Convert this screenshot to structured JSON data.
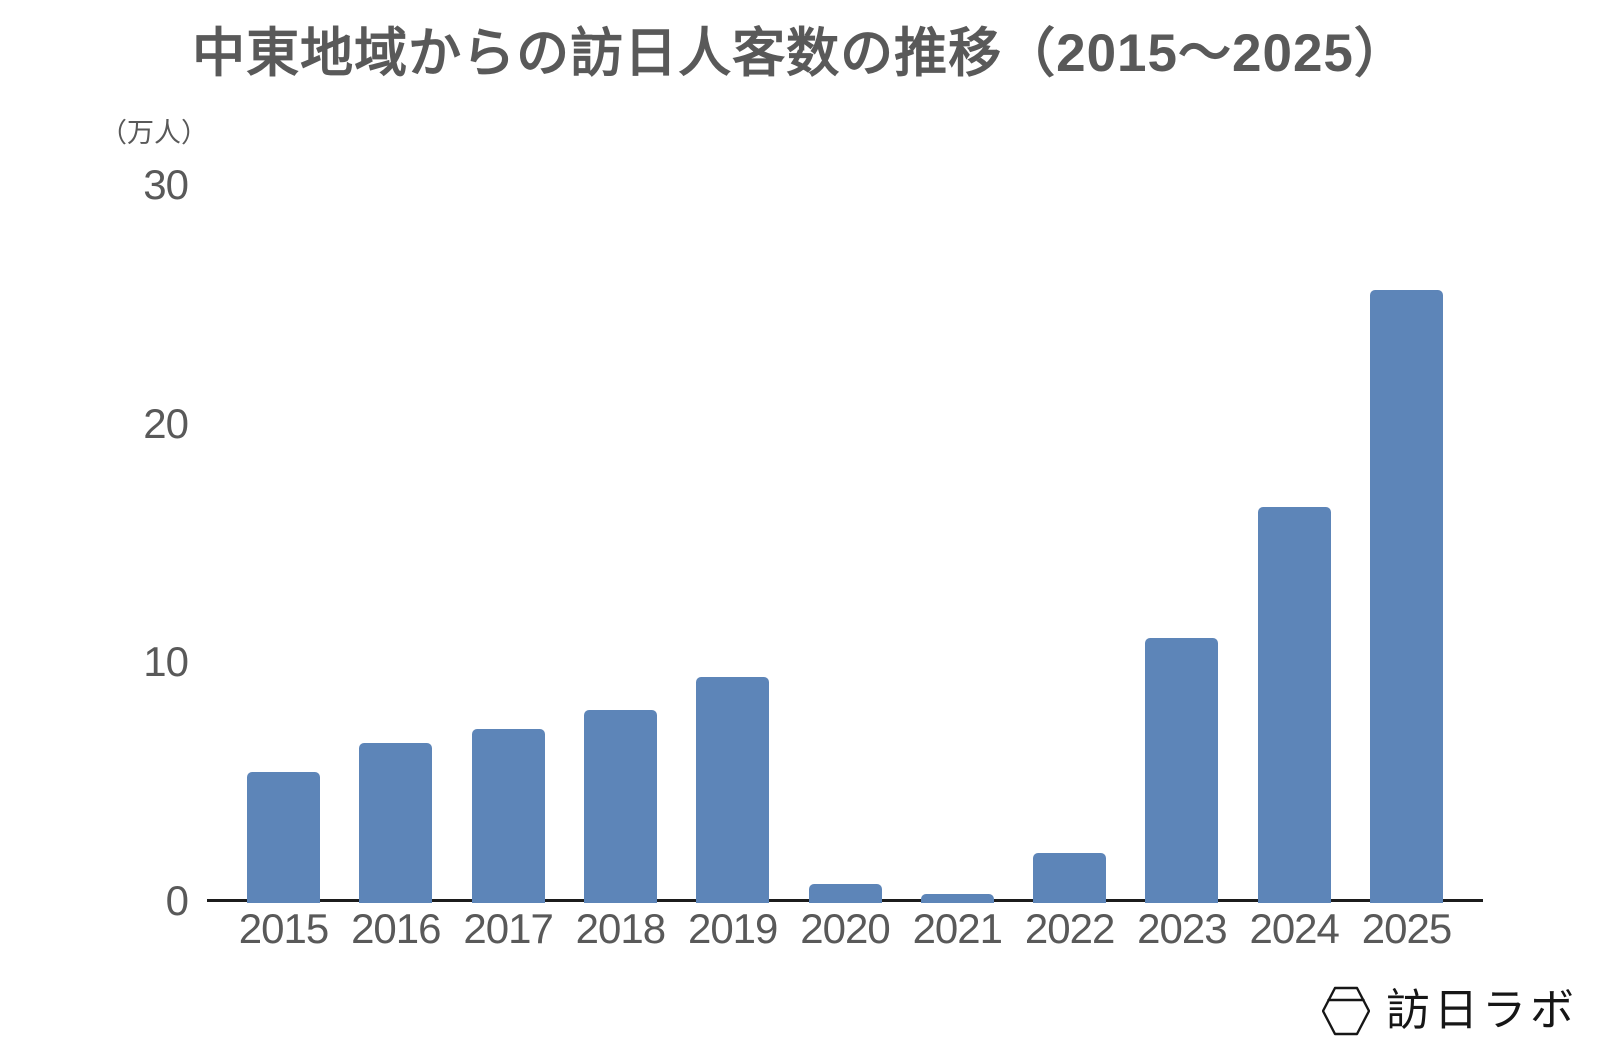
{
  "chart_data": {
    "type": "bar",
    "title": "中東地域からの訪日人客数の推移（2015～2025）",
    "ylabel": "（万人）",
    "unit": "万人",
    "categories": [
      "2015",
      "2016",
      "2017",
      "2018",
      "2019",
      "2020",
      "2021",
      "2022",
      "2023",
      "2024",
      "2025"
    ],
    "values": [
      5.4,
      6.6,
      7.2,
      8.0,
      9.4,
      0.7,
      0.3,
      2.0,
      11.0,
      16.5,
      25.6
    ],
    "yticks": [
      0,
      10,
      20,
      30
    ],
    "ylim": [
      0,
      30
    ],
    "grid": false,
    "legend": false
  },
  "logo": {
    "text": "訪日ラボ",
    "icon": "hexagon-package-icon"
  },
  "colors": {
    "bar": "#5d85b8",
    "title_text": "#595959",
    "axis_label_text": "#595959",
    "axis_line": "#1c1c1c",
    "background": "#ffffff",
    "logo": "#161616"
  }
}
